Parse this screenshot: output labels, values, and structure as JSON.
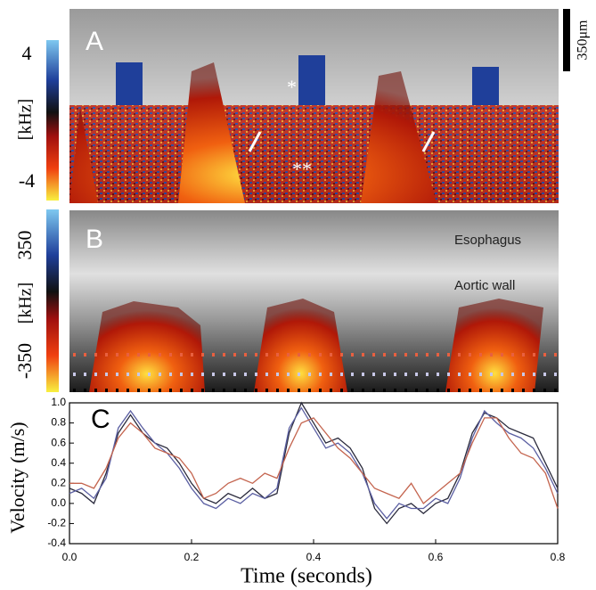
{
  "panel_a": {
    "label": "A",
    "colorbar_max": "4",
    "colorbar_min": "-4",
    "unit": "[kHz]",
    "scale_bar": "350μm",
    "marker_single": "*",
    "marker_double": "**"
  },
  "panel_b": {
    "label": "B",
    "colorbar_max": "350",
    "colorbar_min": "-350",
    "unit": "[kHz]",
    "label_esophagus": "Esophagus",
    "label_aortic_wall": "Aortic wall"
  },
  "chart_data": {
    "type": "line",
    "panel_label": "C",
    "x_label": "Time (seconds)",
    "y_label": "Velocity (m/s)",
    "x": [
      0,
      0.02,
      0.04,
      0.06,
      0.08,
      0.1,
      0.12,
      0.14,
      0.16,
      0.18,
      0.2,
      0.22,
      0.24,
      0.26,
      0.28,
      0.3,
      0.32,
      0.34,
      0.36,
      0.38,
      0.4,
      0.42,
      0.44,
      0.46,
      0.48,
      0.5,
      0.52,
      0.54,
      0.56,
      0.58,
      0.6,
      0.62,
      0.64,
      0.66,
      0.68,
      0.7,
      0.72,
      0.74,
      0.76,
      0.78,
      0.8
    ],
    "series": [
      {
        "color": "#2a2a3c",
        "values": [
          0.15,
          0.1,
          0.0,
          0.3,
          0.7,
          0.88,
          0.7,
          0.6,
          0.55,
          0.4,
          0.2,
          0.05,
          0.0,
          0.1,
          0.05,
          0.15,
          0.05,
          0.1,
          0.7,
          1.0,
          0.8,
          0.6,
          0.65,
          0.55,
          0.35,
          -0.05,
          -0.2,
          -0.05,
          0.0,
          -0.1,
          0.0,
          0.05,
          0.3,
          0.7,
          0.9,
          0.85,
          0.75,
          0.7,
          0.65,
          0.4,
          0.15
        ]
      },
      {
        "color": "#5b5fa2",
        "values": [
          0.1,
          0.15,
          0.05,
          0.25,
          0.75,
          0.92,
          0.75,
          0.6,
          0.5,
          0.35,
          0.15,
          0.0,
          -0.05,
          0.05,
          0.0,
          0.1,
          0.05,
          0.15,
          0.75,
          0.95,
          0.75,
          0.55,
          0.6,
          0.5,
          0.3,
          0.0,
          -0.15,
          0.0,
          -0.05,
          -0.05,
          0.05,
          0.0,
          0.25,
          0.65,
          0.92,
          0.8,
          0.7,
          0.65,
          0.55,
          0.35,
          0.1
        ]
      },
      {
        "color": "#c4644e",
        "values": [
          0.2,
          0.2,
          0.15,
          0.35,
          0.65,
          0.8,
          0.7,
          0.55,
          0.5,
          0.45,
          0.3,
          0.05,
          0.1,
          0.2,
          0.25,
          0.2,
          0.3,
          0.25,
          0.55,
          0.8,
          0.85,
          0.7,
          0.55,
          0.45,
          0.3,
          0.15,
          0.1,
          0.05,
          0.2,
          0.0,
          0.1,
          0.2,
          0.3,
          0.6,
          0.85,
          0.85,
          0.65,
          0.5,
          0.45,
          0.3,
          -0.05
        ]
      }
    ],
    "xlim": [
      0,
      0.8
    ],
    "xticks": [
      {
        "value": 0,
        "label": "0.0"
      },
      0.2,
      0.4,
      0.6,
      0.8
    ],
    "ylim": [
      -0.4,
      1.0
    ],
    "yticks": [
      -0.4,
      -0.2,
      {
        "value": 0,
        "label": "0.0"
      },
      0.2,
      0.4,
      0.6,
      0.8,
      {
        "value": 1,
        "label": "1.0"
      }
    ]
  }
}
